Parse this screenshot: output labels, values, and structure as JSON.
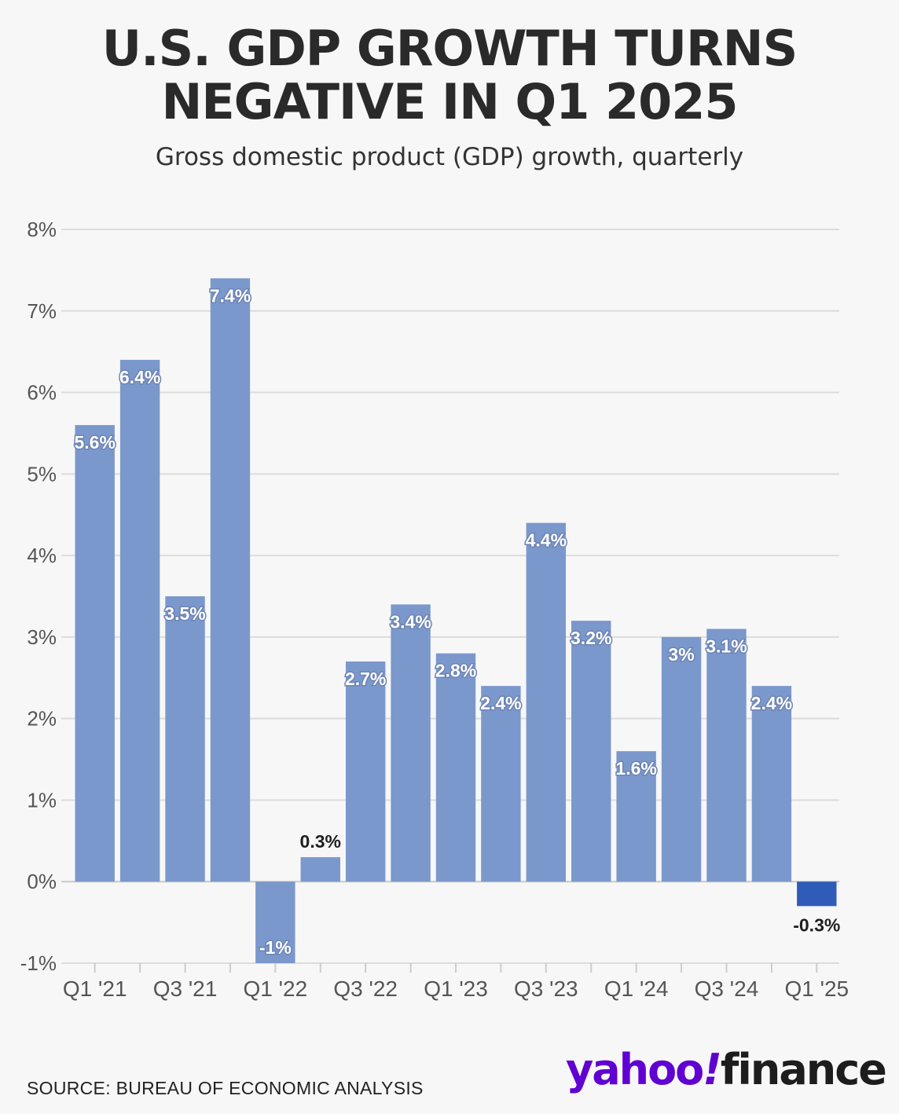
{
  "header": {
    "title_line1": "U.S. GDP GROWTH TURNS",
    "title_line2": "NEGATIVE IN Q1 2025",
    "subtitle": "Gross domestic product (GDP) growth, quarterly"
  },
  "footer": {
    "source": "SOURCE: BUREAU OF ECONOMIC ANALYSIS",
    "logo_yahoo": "yahoo",
    "logo_bang": "!",
    "logo_finance": "finance"
  },
  "colors": {
    "bar": "#7b98cc",
    "bar_highlight": "#2f5cb8",
    "grid": "#dcdcdc",
    "axis_text": "#555555",
    "logo_purple": "#6001d2"
  },
  "chart_data": {
    "type": "bar",
    "title": "U.S. GDP GROWTH TURNS NEGATIVE IN Q1 2025",
    "subtitle": "Gross domestic product (GDP) growth, quarterly",
    "xlabel": "",
    "ylabel": "",
    "ylim": [
      -1,
      8
    ],
    "yticks": [
      -1,
      0,
      1,
      2,
      3,
      4,
      5,
      6,
      7,
      8
    ],
    "ytick_labels": [
      "-1%",
      "0%",
      "1%",
      "2%",
      "3%",
      "4%",
      "5%",
      "6%",
      "7%",
      "8%"
    ],
    "grid": true,
    "categories": [
      "Q1 '21",
      "Q2 '21",
      "Q3 '21",
      "Q4 '21",
      "Q1 '22",
      "Q2 '22",
      "Q3 '22",
      "Q4 '22",
      "Q1 '23",
      "Q2 '23",
      "Q3 '23",
      "Q4 '23",
      "Q1 '24",
      "Q2 '24",
      "Q3 '24",
      "Q4 '24",
      "Q1 '25"
    ],
    "xtick_labels": [
      "Q1 '21",
      "",
      "Q3 '21",
      "",
      "Q1 '22",
      "",
      "Q3 '22",
      "",
      "Q1 '23",
      "",
      "Q3 '23",
      "",
      "Q1 '24",
      "",
      "Q3 '24",
      "",
      "Q1 '25"
    ],
    "values": [
      5.6,
      6.4,
      3.5,
      7.4,
      -1,
      0.3,
      2.7,
      3.4,
      2.8,
      2.4,
      4.4,
      3.2,
      1.6,
      3,
      3.1,
      2.4,
      -0.3
    ],
    "data_labels": [
      "5.6%",
      "6.4%",
      "3.5%",
      "7.4%",
      "-1%",
      "0.3%",
      "2.7%",
      "3.4%",
      "2.8%",
      "2.4%",
      "4.4%",
      "3.2%",
      "1.6%",
      "3%",
      "3.1%",
      "2.4%",
      "-0.3%"
    ],
    "highlight_index": 16
  }
}
